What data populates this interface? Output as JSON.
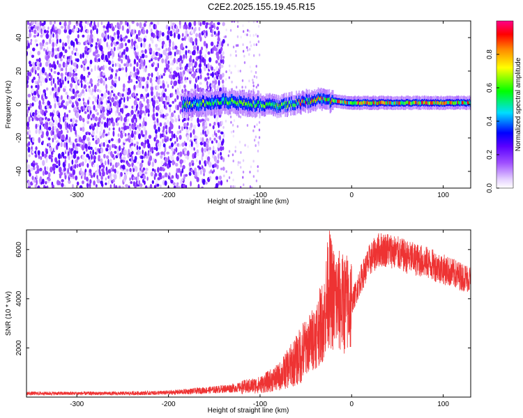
{
  "title": "C2E2.2025.155.19.45.R15",
  "chart_data": [
    {
      "type": "heatmap",
      "title": "C2E2.2025.155.19.45.R15",
      "xlabel": "Height of straight line (km)",
      "ylabel": "Frequency (Hz)",
      "xlim": [
        -355,
        130
      ],
      "ylim": [
        -50,
        50
      ],
      "x_ticks": [
        -300,
        -200,
        -100,
        0,
        100
      ],
      "y_ticks": [
        -40,
        -20,
        0,
        20,
        40
      ],
      "grid": false,
      "colorbar": {
        "label": "Normalized spectral amplitude",
        "range": [
          0.0,
          1.0
        ],
        "ticks": [
          0.0,
          0.2,
          0.4,
          0.6,
          0.8
        ],
        "colormap": "white-purple-blue-cyan-green-yellow-red-magenta"
      },
      "features": [
        {
          "description": "broadband noise",
          "x_range": [
            -355,
            -140
          ],
          "y_range": [
            -50,
            50
          ],
          "amplitude": 0.12
        },
        {
          "description": "sparse noise",
          "x_range": [
            -140,
            -100
          ],
          "y_range": [
            -50,
            50
          ],
          "amplitude": 0.05
        },
        {
          "description": "signal band",
          "x_range": [
            -185,
            130
          ],
          "center_hz": [
            [
              -185,
              0
            ],
            [
              -140,
              2
            ],
            [
              -80,
              -1
            ],
            [
              -40,
              3
            ],
            [
              0,
              1
            ],
            [
              130,
              1
            ]
          ],
          "amplitude_peak": 0.95
        }
      ]
    },
    {
      "type": "line",
      "title": "",
      "xlabel": "Height of straight line (km)",
      "ylabel": "SNR (10 * v/v)",
      "xlim": [
        -355,
        130
      ],
      "ylim": [
        0,
        6800
      ],
      "x_ticks": [
        -300,
        -200,
        -100,
        0,
        100
      ],
      "y_ticks": [
        2000,
        4000,
        6000
      ],
      "grid": false,
      "series": [
        {
          "color": "#ee3333",
          "x": [
            -355,
            -300,
            -250,
            -200,
            -170,
            -150,
            -120,
            -100,
            -80,
            -60,
            -50,
            -40,
            -30,
            -25,
            -20,
            -10,
            0,
            10,
            20,
            30,
            40,
            60,
            80,
            100,
            120,
            130
          ],
          "y": [
            150,
            150,
            150,
            180,
            250,
            300,
            400,
            500,
            800,
            1500,
            2000,
            2500,
            3200,
            4500,
            4000,
            3800,
            3800,
            4800,
            5600,
            6000,
            6000,
            5700,
            5500,
            5200,
            4900,
            4800
          ]
        }
      ]
    }
  ]
}
